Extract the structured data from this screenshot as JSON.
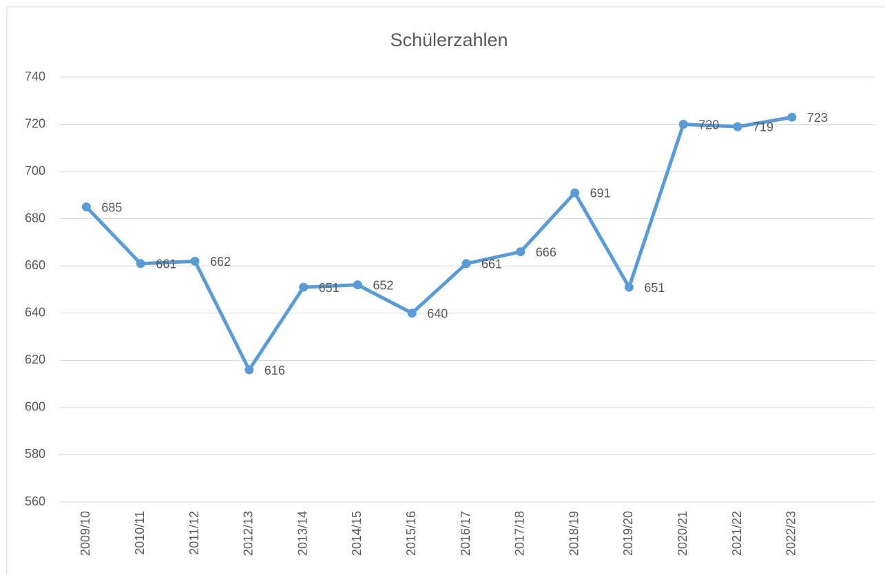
{
  "chart_data": {
    "type": "line",
    "title": "Schülerzahlen",
    "categories": [
      "2009/10",
      "2010/11",
      "2011/12",
      "2012/13",
      "2013/14",
      "2014/15",
      "2015/16",
      "2016/17",
      "2017/18",
      "2018/19",
      "2019/20",
      "2020/21",
      "2021/22",
      "2022/23"
    ],
    "values": [
      685,
      661,
      662,
      616,
      651,
      652,
      640,
      661,
      666,
      691,
      651,
      720,
      719,
      723
    ],
    "color": "#5b9bd5",
    "ylim": [
      560,
      740
    ],
    "yticks": [
      560,
      580,
      600,
      620,
      640,
      660,
      680,
      700,
      720,
      740
    ],
    "grid": true
  }
}
